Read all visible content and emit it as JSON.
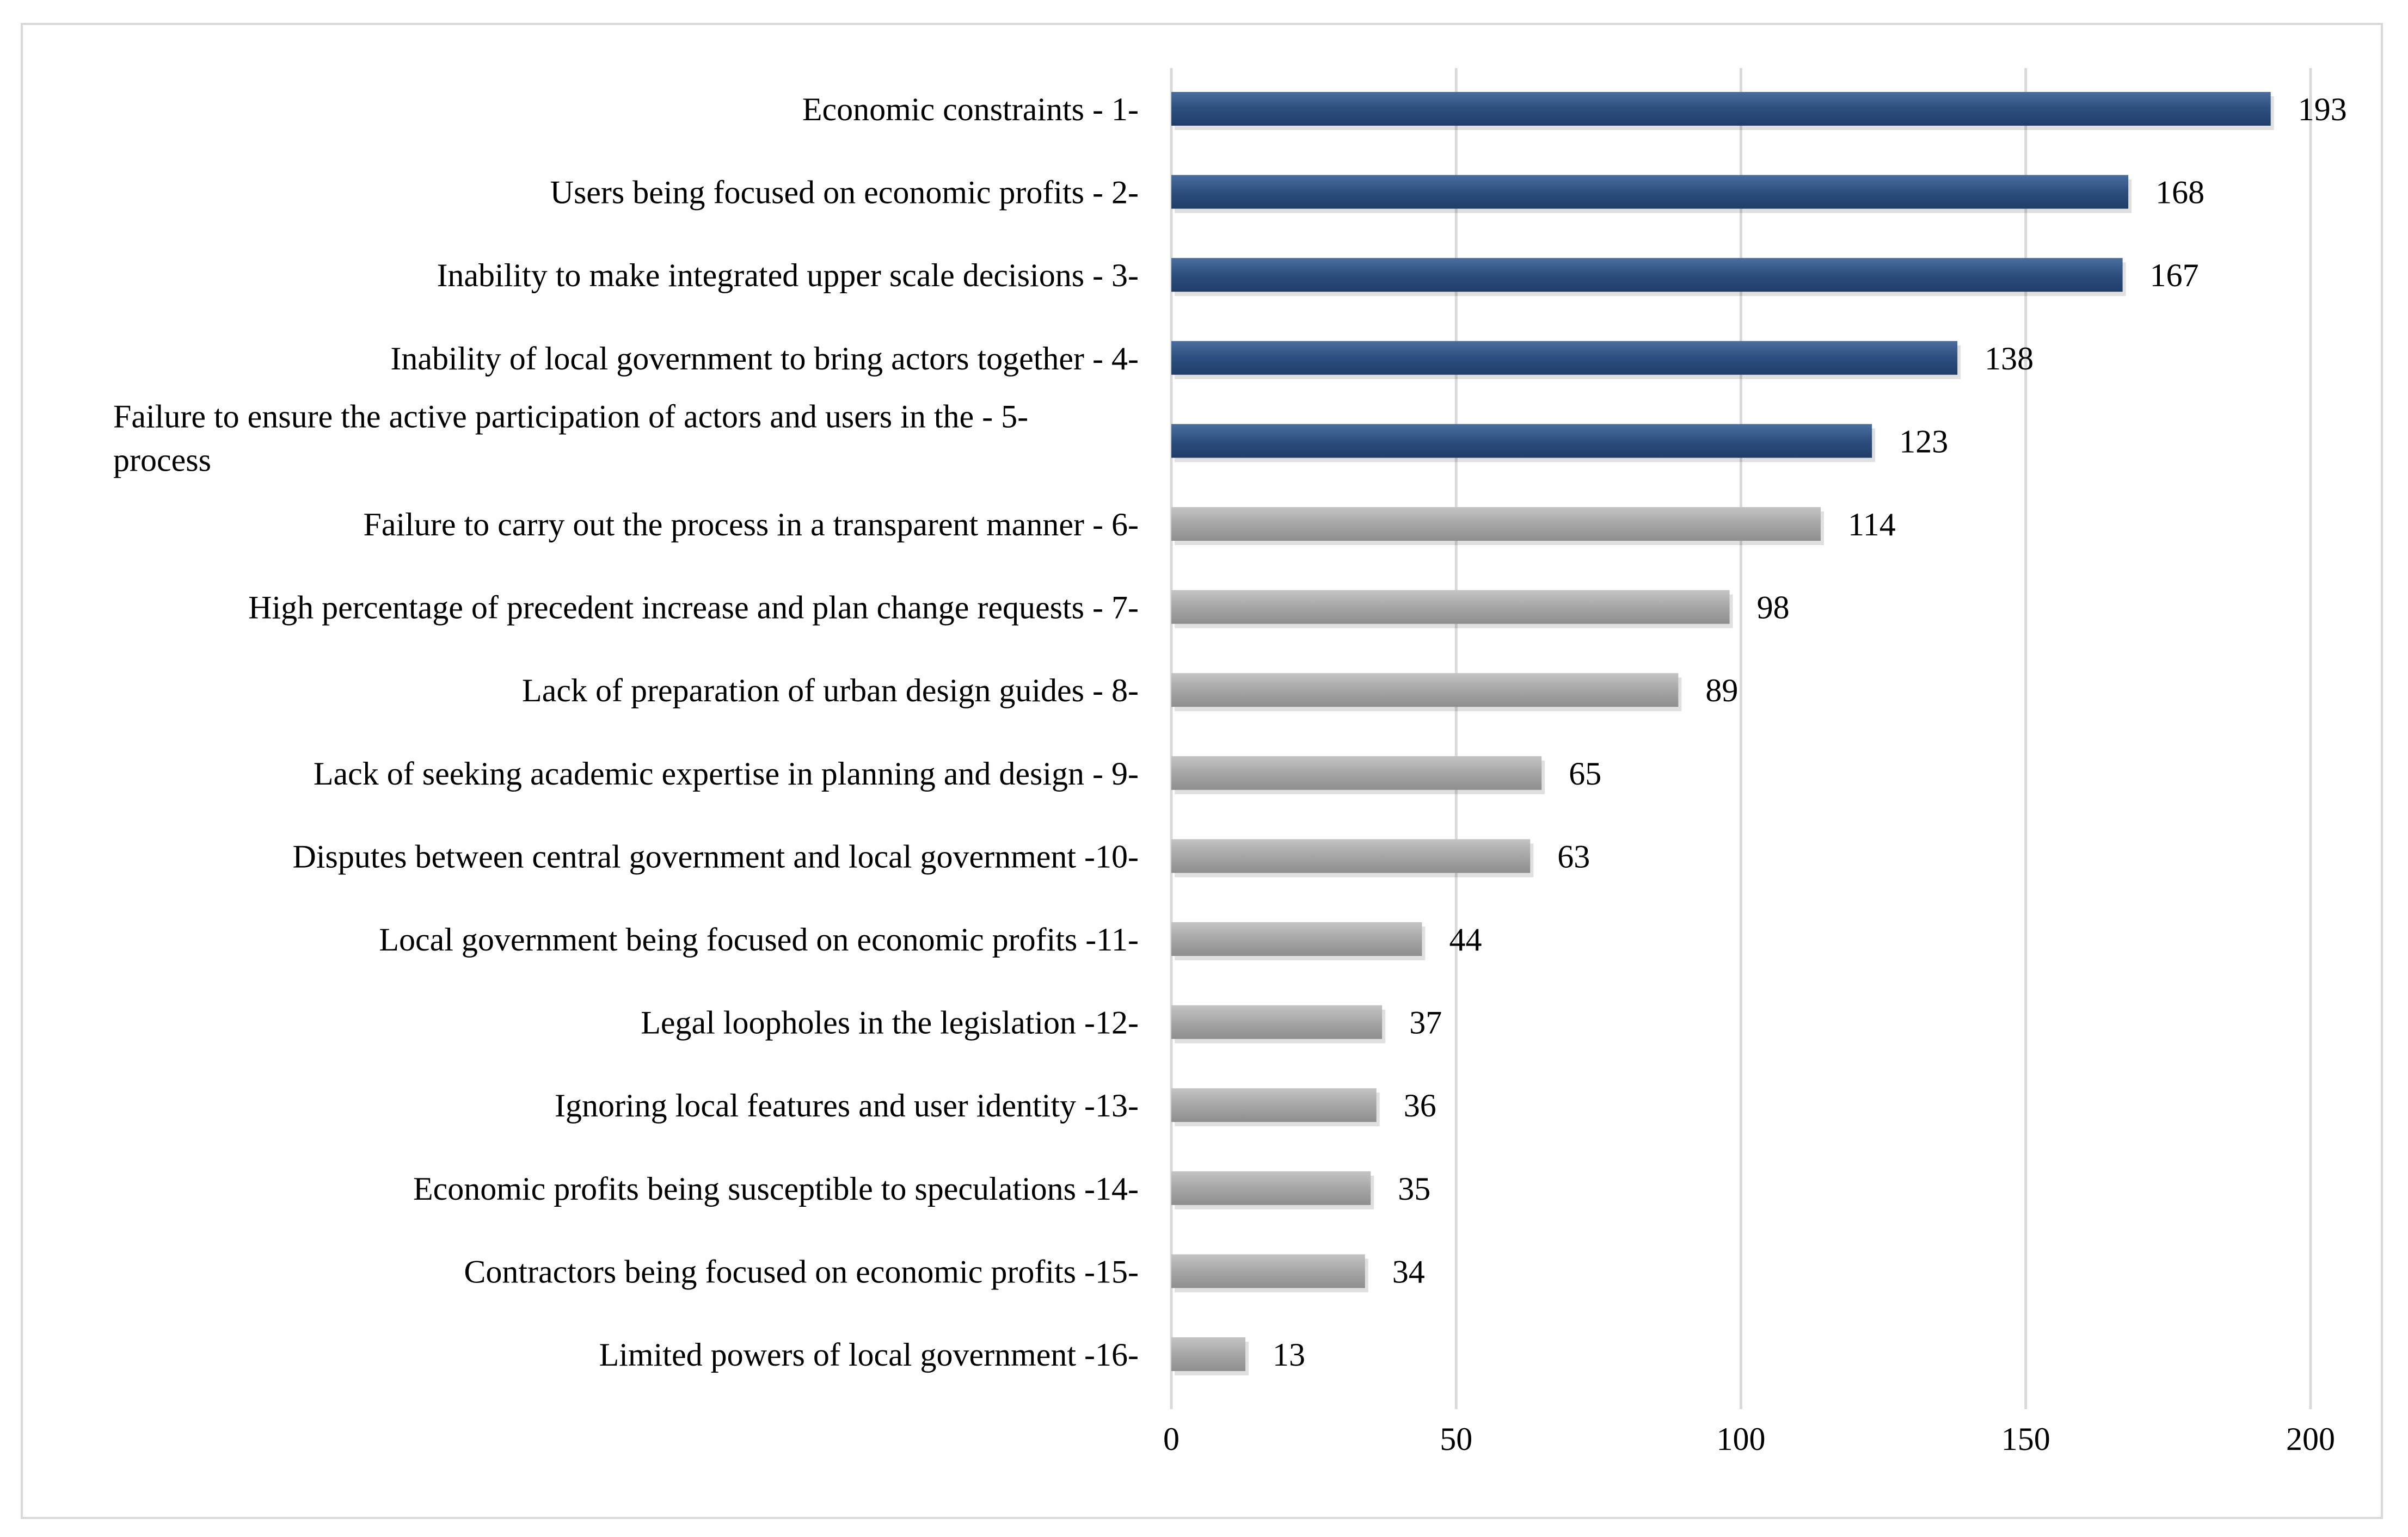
{
  "chart_data": {
    "type": "bar",
    "orientation": "horizontal",
    "categories": [
      "Economic constraints - 1-",
      "Users being focused on economic profits - 2-",
      "Inability to make integrated upper scale decisions  - 3-",
      "Inability of local government to bring actors together - 4-",
      "Failure to ensure the active participation of actors and users in the - 5- process",
      "Failure to carry out the process in a transparent manner - 6-",
      "High percentage of precedent increase and plan change requests - 7-",
      "Lack of preparation of urban design guides - 8-",
      "Lack of seeking academic expertise in planning and design - 9-",
      "Disputes between central government and local government -10-",
      "Local government being focused on economic profits -11-",
      "Legal loopholes in the legislation -12-",
      "Ignoring local features and user identity -13-",
      "Economic profits being susceptible to speculations -14-",
      "Contractors being focused on economic profits -15-",
      "Limited powers of local government -16-"
    ],
    "label_lines": [
      [
        "Economic constraints - 1-"
      ],
      [
        "Users being focused on economic profits - 2-"
      ],
      [
        "Inability to make integrated upper scale decisions  - 3-"
      ],
      [
        "Inability of local government to bring actors together - 4-"
      ],
      [
        "Failure to ensure the active participation of actors and users in the - 5-",
        "process"
      ],
      [
        "Failure to carry out the process in a transparent manner - 6-"
      ],
      [
        "High percentage of precedent increase and plan change requests - 7-"
      ],
      [
        "Lack of preparation of urban design guides - 8-"
      ],
      [
        "Lack of seeking academic expertise in planning and design - 9-"
      ],
      [
        "Disputes between central government and local government -10-"
      ],
      [
        "Local government being focused on economic profits -11-"
      ],
      [
        "Legal loopholes in the legislation -12-"
      ],
      [
        "Ignoring local features and user identity -13-"
      ],
      [
        "Economic profits being susceptible to speculations -14-"
      ],
      [
        "Contractors being focused on economic profits -15-"
      ],
      [
        "Limited powers of local government -16-"
      ]
    ],
    "values": [
      193,
      168,
      167,
      138,
      123,
      114,
      98,
      89,
      65,
      63,
      44,
      37,
      36,
      35,
      34,
      13
    ],
    "highlight_count": 5,
    "colors": {
      "highlight": "#2d4f7f",
      "default": "#a6a6a6",
      "grid": "#d9d9d9"
    },
    "xlim": [
      0,
      200
    ],
    "xticks": [
      0,
      50,
      100,
      150,
      200
    ],
    "grid": true,
    "data_labels": true,
    "title": "",
    "xlabel": "",
    "ylabel": ""
  }
}
